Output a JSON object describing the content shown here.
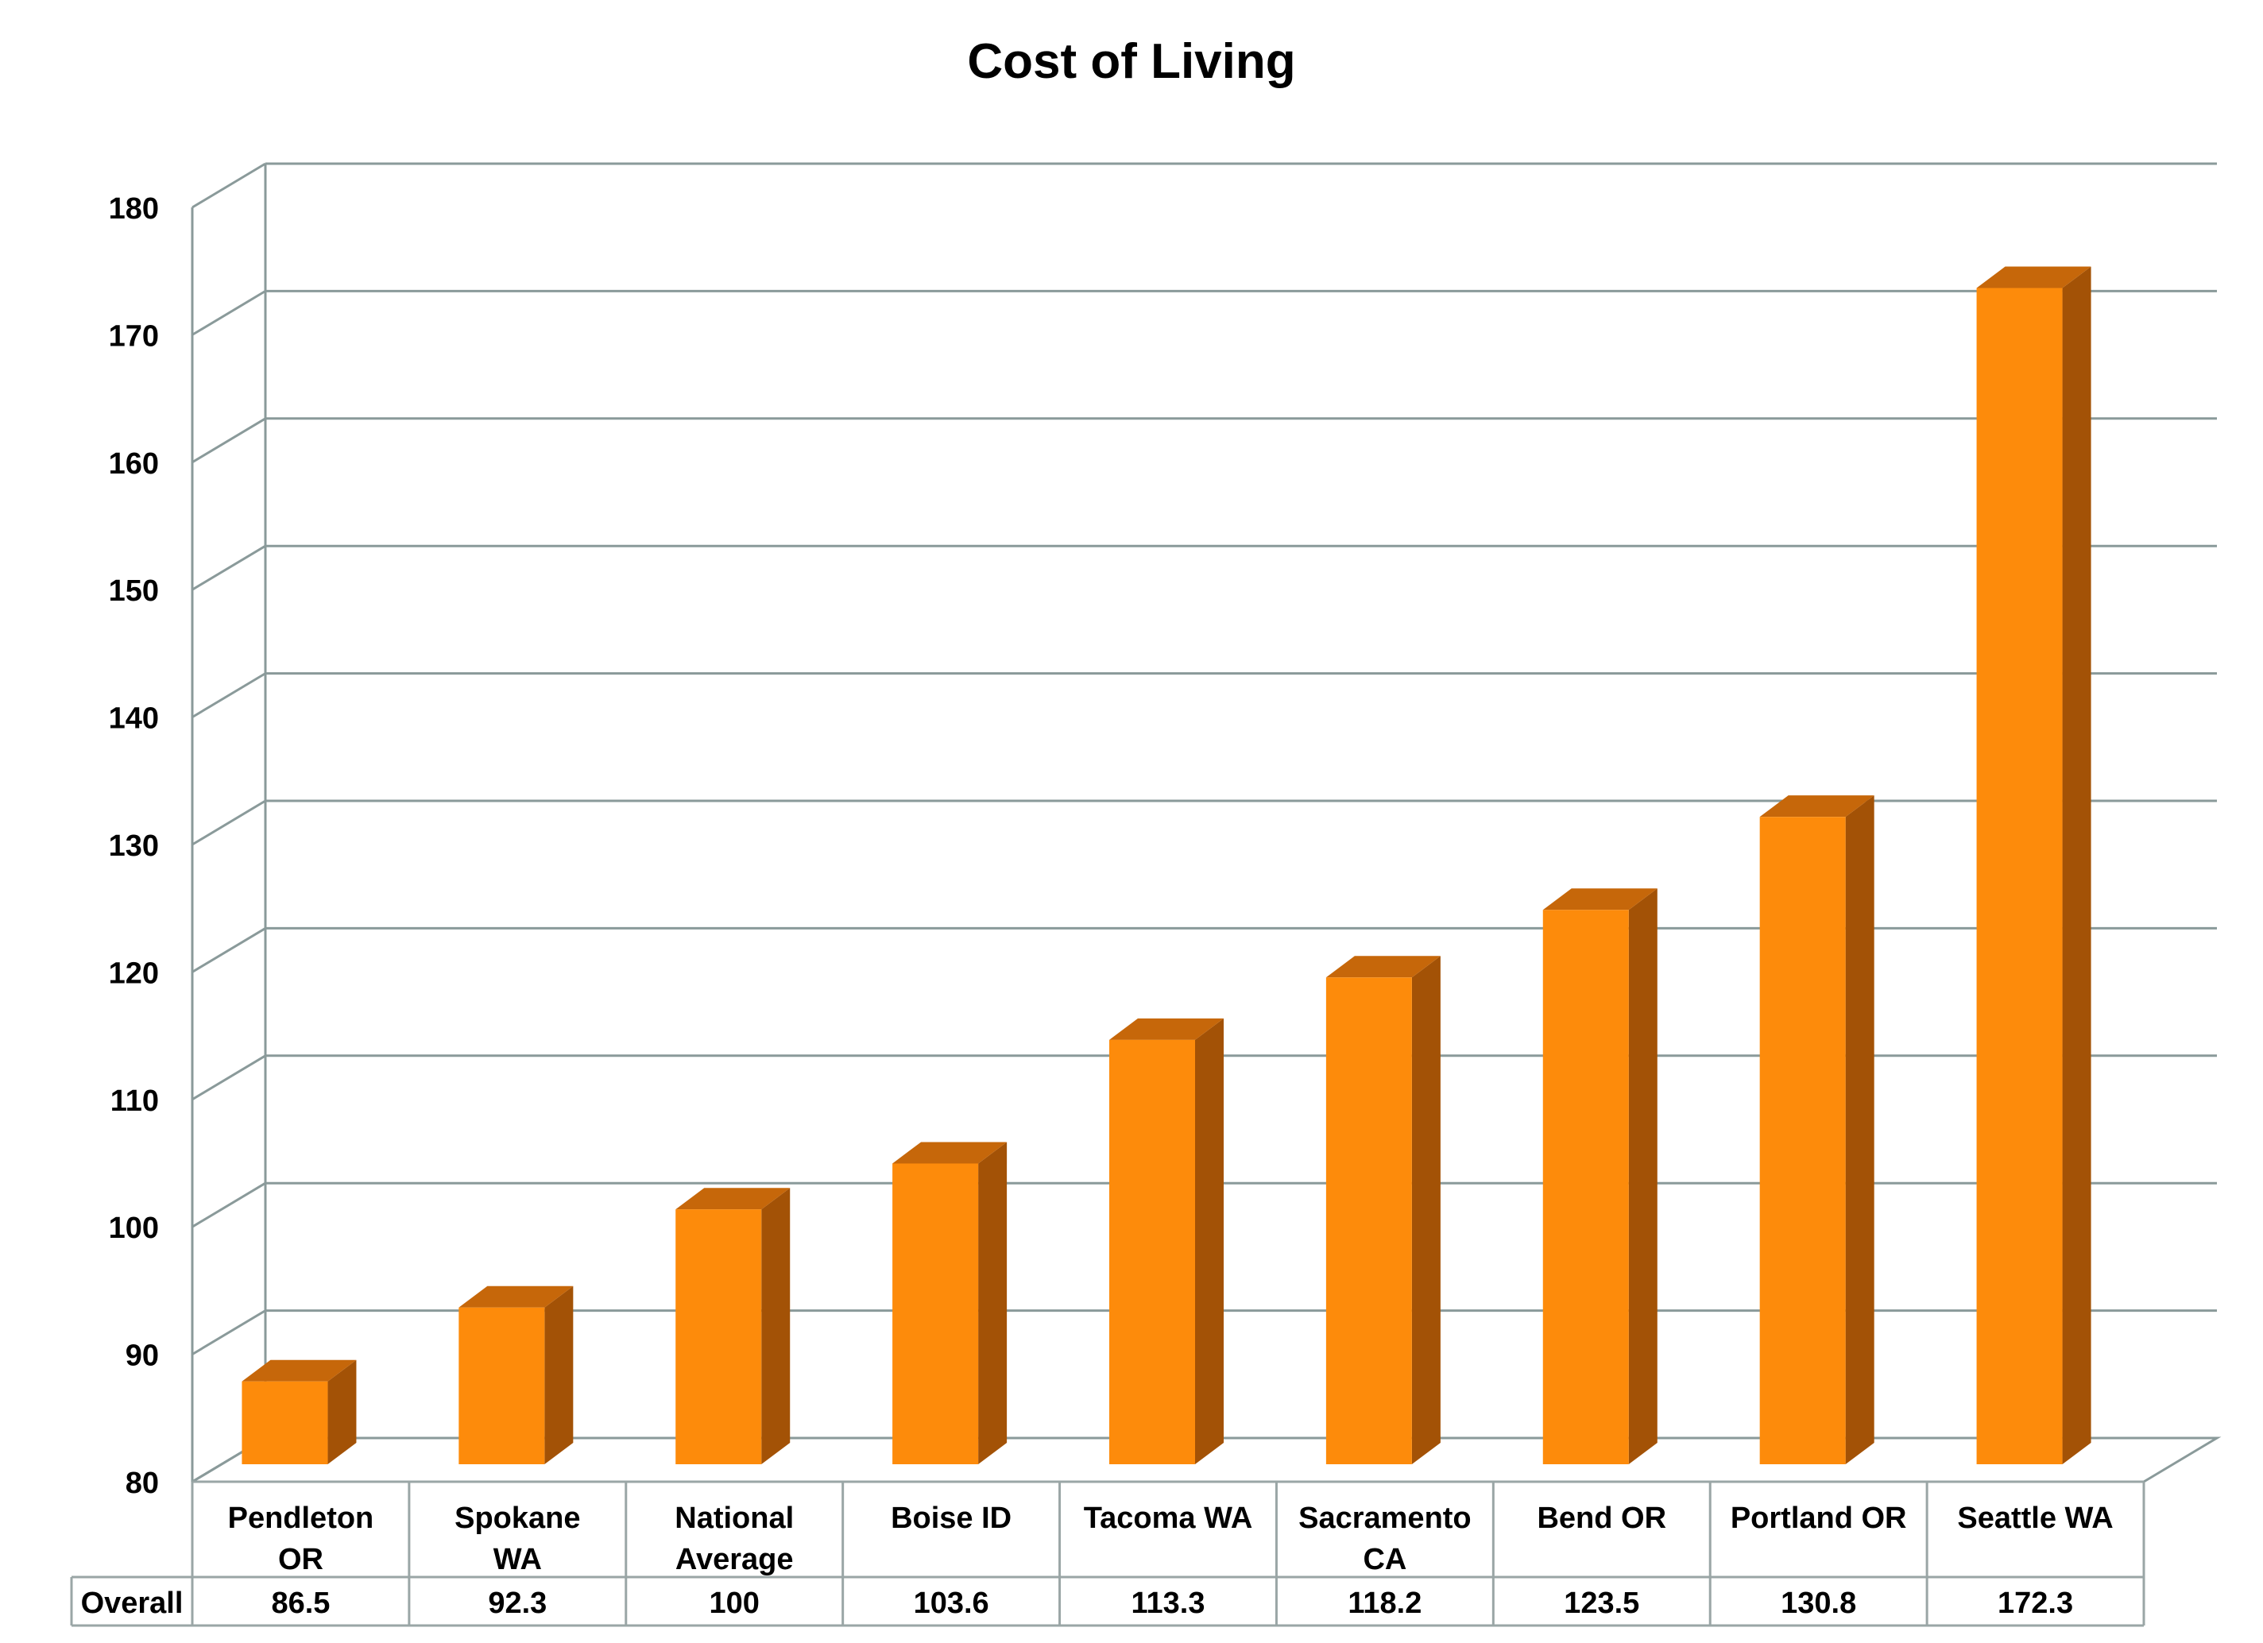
{
  "chart_data": {
    "type": "bar",
    "title": "Cost of Living",
    "xlabel": "",
    "ylabel": "",
    "ylim": [
      80,
      180
    ],
    "y_ticks": [
      "80",
      "90",
      "100",
      "110",
      "120",
      "130",
      "140",
      "150",
      "160",
      "170",
      "180"
    ],
    "grid": true,
    "three_d": true,
    "categories": [
      [
        "Pendleton",
        "OR"
      ],
      [
        "Spokane",
        "WA"
      ],
      [
        "National",
        "Average"
      ],
      [
        "Boise ID"
      ],
      [
        "Tacoma WA"
      ],
      [
        "Sacramento",
        "CA"
      ],
      [
        "Bend OR"
      ],
      [
        "Portland OR"
      ],
      [
        "Seattle WA"
      ]
    ],
    "series": [
      {
        "name": "Overall",
        "values": [
          86.5,
          92.3,
          100,
          103.6,
          113.3,
          118.2,
          123.5,
          130.8,
          172.3
        ],
        "labels": [
          "86.5",
          "92.3",
          "100",
          "103.6",
          "113.3",
          "118.2",
          "123.5",
          "130.8",
          "172.3"
        ]
      }
    ],
    "data_table": true,
    "colors": {
      "bar_front": "#fd8b0b",
      "bar_side": "#a35206",
      "bar_top": "#c6670a",
      "grid": "#8a9a9a",
      "table_border": "#9aa6a6"
    }
  }
}
